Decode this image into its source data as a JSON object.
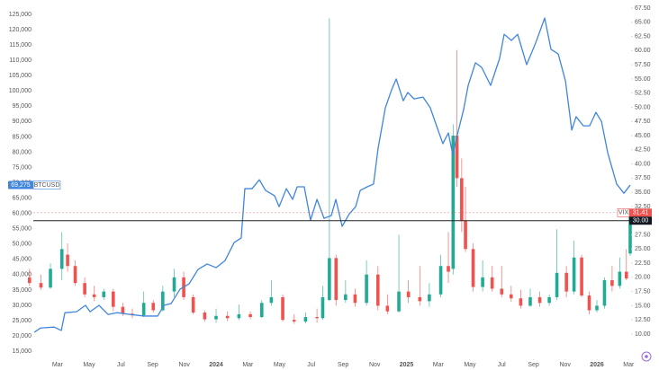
{
  "chart_data": {
    "type": "combo",
    "xlim": [
      2022.865,
      2026.175
    ],
    "xticks": [
      {
        "value": 2023.167,
        "label": "Mar"
      },
      {
        "value": 2023.333,
        "label": "May"
      },
      {
        "value": 2023.5,
        "label": "Jul"
      },
      {
        "value": 2023.667,
        "label": "Sep"
      },
      {
        "value": 2023.833,
        "label": "Nov"
      },
      2024,
      {
        "value": 2024.167,
        "label": "Mar"
      },
      {
        "value": 2024.333,
        "label": "May"
      },
      {
        "value": 2024.5,
        "label": "Jul"
      },
      {
        "value": 2024.667,
        "label": "Sep"
      },
      {
        "value": 2024.833,
        "label": "Nov"
      },
      2025,
      {
        "value": 2025.167,
        "label": "Mar"
      },
      {
        "value": 2025.333,
        "label": "May"
      },
      {
        "value": 2025.5,
        "label": "Jul"
      },
      {
        "value": 2025.667,
        "label": "Sep"
      },
      {
        "value": 2025.833,
        "label": "Nov"
      },
      2026,
      {
        "value": 2026.167,
        "label": "Mar"
      }
    ],
    "ylim": [
      12400,
      129700
    ],
    "yticks": [
      {
        "value": 15000,
        "label": "15,000"
      },
      {
        "value": 20000,
        "label": "20,000"
      },
      {
        "value": 25000,
        "label": "25,000"
      },
      {
        "value": 30000,
        "label": "30,000"
      },
      {
        "value": 35000,
        "label": "35,000"
      },
      {
        "value": 40000,
        "label": "40,000"
      },
      {
        "value": 45000,
        "label": "45,000"
      },
      {
        "value": 50000,
        "label": "50,000"
      },
      {
        "value": 55000,
        "label": "55,000"
      },
      {
        "value": 60000,
        "label": "60,000"
      },
      {
        "value": 65000,
        "label": "65,000"
      },
      {
        "value": 70000,
        "label": "70,000"
      },
      {
        "value": 75000,
        "label": "75,000"
      },
      {
        "value": 80000,
        "label": "80,000"
      },
      {
        "value": 85000,
        "label": "85,000"
      },
      {
        "value": 90000,
        "label": "90,000"
      },
      {
        "value": 95000,
        "label": "95,000"
      },
      {
        "value": 100000,
        "label": "100,000"
      },
      {
        "value": 105000,
        "label": "105,000"
      },
      {
        "value": 110000,
        "label": "110,000"
      },
      {
        "value": 115000,
        "label": "115,000"
      },
      {
        "value": 120000,
        "label": "120,000"
      },
      {
        "value": 125000,
        "label": "125,000"
      }
    ],
    "y2lim": [
      5.56,
      68.93
    ],
    "y2ticks": [
      {
        "value": 10,
        "label": "10.00"
      },
      {
        "value": 12.5,
        "label": "12.50"
      },
      {
        "value": 15,
        "label": "15.00"
      },
      {
        "value": 17.5,
        "label": "17.50"
      },
      {
        "value": 20,
        "label": "20.00"
      },
      {
        "value": 22.5,
        "label": "22.50"
      },
      {
        "value": 25,
        "label": "25.00"
      },
      {
        "value": 27.5,
        "label": "27.50"
      },
      {
        "value": 30,
        "label": "30.00"
      },
      {
        "value": 32.5,
        "label": "32.50"
      },
      {
        "value": 35,
        "label": "35.00"
      },
      {
        "value": 37.5,
        "label": "37.50"
      },
      {
        "value": 40,
        "label": "40.00"
      },
      {
        "value": 42.5,
        "label": "42.50"
      },
      {
        "value": 45,
        "label": "45.00"
      },
      {
        "value": 47.5,
        "label": "47.50"
      },
      {
        "value": 50,
        "label": "50.00"
      },
      {
        "value": 52.5,
        "label": "52.50"
      },
      {
        "value": 55,
        "label": "55.00"
      },
      {
        "value": 57.5,
        "label": "57.50"
      },
      {
        "value": 60,
        "label": "60.00"
      },
      {
        "value": 62.5,
        "label": "62.50"
      },
      {
        "value": 65,
        "label": "65.00"
      },
      {
        "value": 67.5,
        "label": "67.50"
      }
    ],
    "grid": false,
    "crosshair": {
      "value": 30,
      "label": "30.00",
      "axis": "y2"
    },
    "series": [
      {
        "name": "BTCUSD",
        "type": "line",
        "color": "#3f86dc",
        "badge": {
          "value": 69275,
          "label": "69,275"
        },
        "x": [
          2023.045,
          2023.078,
          2023.149,
          2023.187,
          2023.206,
          2023.267,
          2023.314,
          2023.338,
          2023.385,
          2023.433,
          2023.48,
          2023.551,
          2023.622,
          2023.693,
          2023.726,
          2023.764,
          2023.811,
          2023.858,
          2023.905,
          2023.953,
          2024.0,
          2024.047,
          2024.095,
          2024.132,
          2024.151,
          2024.189,
          2024.227,
          2024.26,
          2024.307,
          2024.331,
          2024.369,
          2024.402,
          2024.426,
          2024.463,
          2024.496,
          2024.53,
          2024.567,
          2024.605,
          2024.629,
          2024.662,
          2024.7,
          2024.733,
          2024.757,
          2024.794,
          2024.827,
          2024.851,
          2024.889,
          2024.922,
          2024.946,
          2024.983,
          2025.007,
          2025.04,
          2025.087,
          2025.125,
          2025.158,
          2025.191,
          2025.22,
          2025.243,
          2025.267,
          2025.3,
          2025.324,
          2025.362,
          2025.395,
          2025.442,
          2025.489,
          2025.513,
          2025.551,
          2025.584,
          2025.631,
          2025.678,
          2025.726,
          2025.759,
          2025.797,
          2025.835,
          2025.868,
          2025.891,
          2025.929,
          2025.962,
          2025.995,
          2026.024,
          2026.057,
          2026.104,
          2026.142,
          2026.175
        ],
        "values": [
          21200,
          22600,
          22900,
          21800,
          27600,
          27900,
          30000,
          27900,
          30000,
          27000,
          27600,
          27000,
          26500,
          26500,
          30000,
          30600,
          35300,
          37000,
          41700,
          43500,
          42300,
          44600,
          50500,
          52000,
          68100,
          68100,
          71000,
          67500,
          65800,
          62200,
          68100,
          64600,
          68700,
          68700,
          57800,
          64600,
          58400,
          59300,
          64600,
          55800,
          59900,
          62200,
          67500,
          68700,
          69600,
          81300,
          94500,
          100400,
          103900,
          96800,
          99500,
          97400,
          98000,
          94500,
          88600,
          82800,
          86300,
          79200,
          85700,
          93900,
          101800,
          109200,
          107700,
          101800,
          110600,
          118500,
          116500,
          118500,
          108600,
          115600,
          123800,
          113600,
          112100,
          103300,
          87200,
          91600,
          88600,
          88600,
          93000,
          90100,
          79800,
          69600,
          66600,
          69275
        ]
      },
      {
        "name": "VIX",
        "type": "candlestick",
        "axis": "y2",
        "up_color": "#22ab94",
        "down_color": "#f0524f",
        "badge": {
          "value": 31.41,
          "label": "31.41"
        },
        "countdown": "4d 7h",
        "x": [
          2023.02,
          2023.08,
          2023.13,
          2023.19,
          2023.22,
          2023.26,
          2023.31,
          2023.36,
          2023.41,
          2023.46,
          2023.51,
          2023.56,
          2023.62,
          2023.67,
          2023.72,
          2023.78,
          2023.83,
          2023.88,
          2023.94,
          2024.0,
          2024.06,
          2024.12,
          2024.18,
          2024.24,
          2024.29,
          2024.35,
          2024.41,
          2024.47,
          2024.53,
          2024.56,
          2024.595,
          2024.63,
          2024.68,
          2024.73,
          2024.79,
          2024.85,
          2024.9,
          2024.96,
          2025.01,
          2025.07,
          2025.12,
          2025.18,
          2025.22,
          2025.245,
          2025.265,
          2025.29,
          2025.31,
          2025.35,
          2025.4,
          2025.45,
          2025.5,
          2025.55,
          2025.6,
          2025.65,
          2025.7,
          2025.75,
          2025.79,
          2025.84,
          2025.88,
          2025.92,
          2025.96,
          2026.0,
          2026.04,
          2026.08,
          2026.12,
          2026.155,
          2026.175
        ],
        "open": [
          20,
          19,
          18.2,
          21.5,
          24,
          22,
          19,
          17,
          16.5,
          17.5,
          14.8,
          13.6,
          13.3,
          15.5,
          14.2,
          17.5,
          20,
          16.5,
          13.8,
          12.6,
          13.2,
          12.8,
          13.5,
          13,
          15.5,
          16.5,
          12.5,
          12.2,
          13,
          12.8,
          16,
          23.4,
          16,
          17,
          15.5,
          20.5,
          15,
          14,
          17.5,
          16.5,
          15.8,
          17,
          22,
          21.5,
          45,
          37.5,
          30,
          25,
          18.3,
          20,
          18,
          17,
          16.3,
          15,
          16.5,
          15.5,
          16.5,
          20.8,
          17.5,
          23.5,
          16.8,
          14.2,
          15,
          19.5,
          18.5,
          21,
          24.2
        ],
        "high": [
          21.5,
          20.5,
          22.5,
          28,
          26,
          23,
          20,
          18.5,
          18,
          18,
          15.5,
          14.5,
          17.5,
          16,
          18.5,
          21.5,
          21,
          17,
          14.2,
          14.5,
          14,
          15.2,
          14,
          16,
          19.5,
          17,
          13.5,
          13.8,
          14.5,
          18.5,
          65.7,
          24,
          19.5,
          18,
          23,
          22,
          17,
          27.5,
          19.5,
          22,
          19,
          24,
          28,
          47,
          60.1,
          41,
          36,
          26,
          23,
          22,
          22,
          18.5,
          17.8,
          18,
          17.5,
          17,
          28.5,
          22,
          26.5,
          24,
          17.5,
          16,
          20,
          22,
          23.5,
          25,
          31.9
        ],
        "low": [
          18.5,
          17.8,
          18,
          19.5,
          21,
          18.5,
          16.5,
          15.8,
          16,
          14,
          13.2,
          12.8,
          13,
          13.8,
          14,
          16.5,
          16,
          13.5,
          12.2,
          12,
          12.3,
          12.5,
          12.6,
          12.8,
          15,
          12.2,
          11.8,
          11.9,
          12,
          12.5,
          15.8,
          15,
          15.5,
          14.8,
          15,
          14.2,
          13.5,
          13.8,
          15.5,
          15,
          14.8,
          16.5,
          19,
          20.5,
          36,
          28,
          24.5,
          17.5,
          17.5,
          17.5,
          16.5,
          15.7,
          14.5,
          14.8,
          14.8,
          15,
          16,
          16.5,
          17,
          16.5,
          13.5,
          13.8,
          14.5,
          17.5,
          18,
          19.5,
          23.8
        ],
        "close": [
          19,
          18.2,
          21.5,
          25,
          22,
          19,
          17,
          16.5,
          17.5,
          14.8,
          13.6,
          13.3,
          15.5,
          14.2,
          17.5,
          20,
          16.5,
          13.8,
          12.6,
          13.2,
          12.8,
          13.5,
          13,
          15.5,
          16.5,
          12.5,
          12.2,
          13,
          12.8,
          16.5,
          23.4,
          16,
          17,
          15.5,
          20.5,
          15,
          14,
          17.5,
          16.5,
          15.8,
          17,
          22,
          21,
          45,
          37.5,
          30,
          25,
          18.3,
          20,
          18,
          17,
          16.3,
          15,
          16.5,
          15.5,
          16.5,
          20.8,
          17.5,
          23.5,
          16.8,
          14.2,
          15,
          19.5,
          18.5,
          21,
          19.8,
          31.41
        ]
      }
    ]
  }
}
